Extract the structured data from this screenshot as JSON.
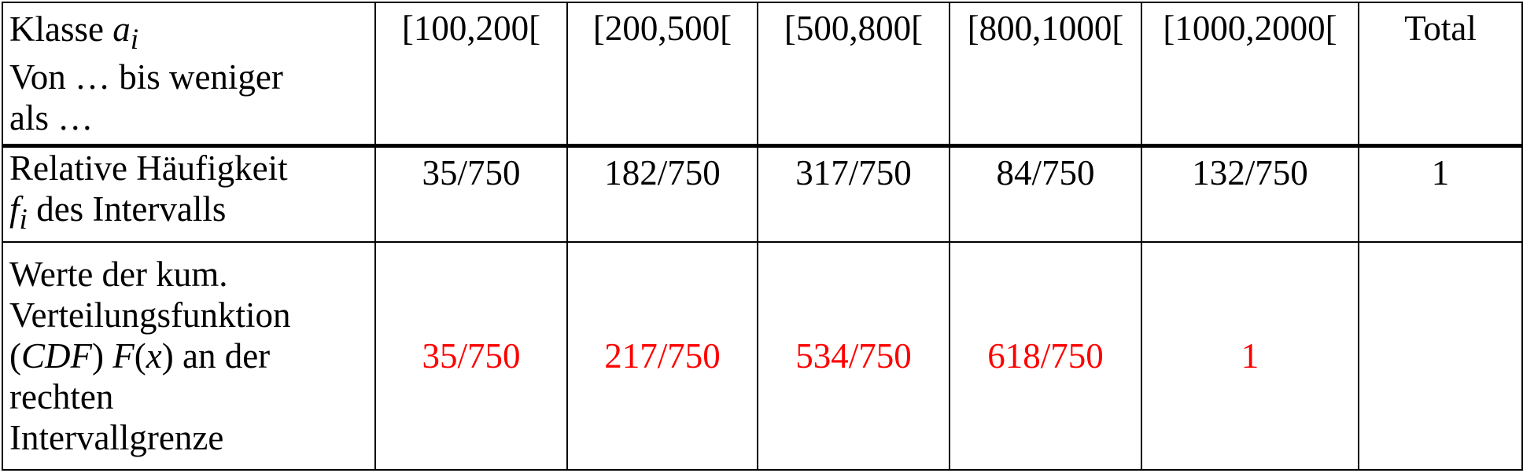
{
  "table": {
    "header": {
      "label_line1_prefix": "Klasse ",
      "label_line1_var": "a",
      "label_line1_sub": "i",
      "label_line2": "Von … bis weniger",
      "label_line3": "als …",
      "intervals": [
        "[100,200[",
        "[200,500[",
        "[500,800[",
        "[800,1000[",
        "[1000,2000["
      ],
      "total": "Total"
    },
    "relative_row": {
      "label_line1": "Relative Häufigkeit",
      "label_line2_var": "f",
      "label_line2_sub": "i",
      "label_line2_rest": " des Intervalls",
      "values": [
        "35/750",
        "182/750",
        "317/750",
        "84/750",
        "132/750"
      ],
      "total": "1"
    },
    "cdf_row": {
      "label_line1": "Werte der kum.",
      "label_line2": "Verteilungsfunktion",
      "label_line3_open": "(",
      "label_line3_cdf": "CDF",
      "label_line3_mid": ") ",
      "label_line3_F": "F",
      "label_line3_paren_open": "(",
      "label_line3_x": "x",
      "label_line3_rest": ") an der",
      "label_line4": "rechten",
      "label_line5": "Intervallgrenze",
      "values": [
        "35/750",
        "217/750",
        "534/750",
        "618/750",
        "1"
      ],
      "total": ""
    }
  },
  "colors": {
    "text": "#000000",
    "highlight": "#ff0000",
    "border": "#000000",
    "background": "#ffffff"
  }
}
